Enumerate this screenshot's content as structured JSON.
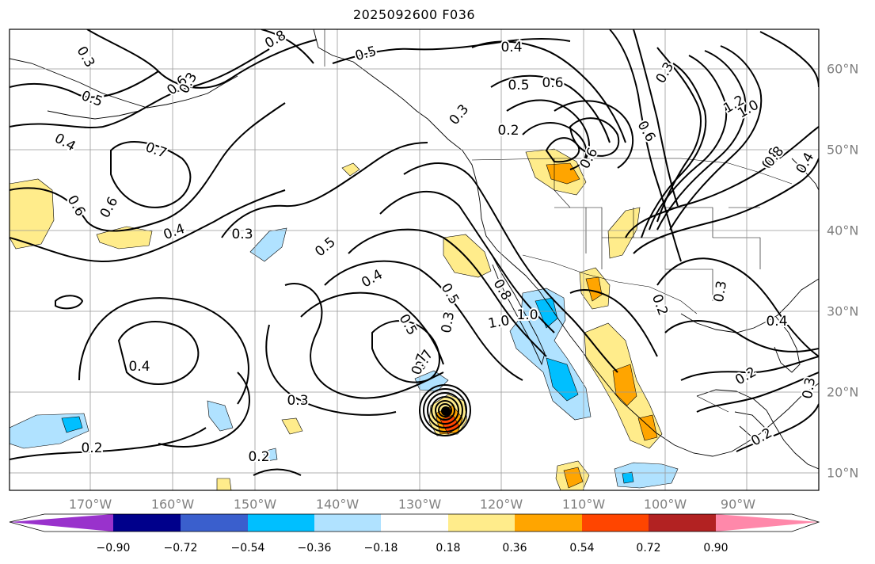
{
  "title": "2025092600 F036",
  "lon_labels": [
    "170°W",
    "160°W",
    "150°W",
    "140°W",
    "130°W",
    "120°W",
    "110°W",
    "100°W",
    "90°W"
  ],
  "lat_labels": [
    "60°N",
    "50°N",
    "40°N",
    "30°N",
    "20°N",
    "10°N"
  ],
  "contour_labels": [
    "0.3",
    "0.5",
    "0.8",
    "0.5",
    "0.4",
    "0.6",
    "0.5",
    "0.6",
    "0.4",
    "0.7",
    "0.6",
    "0.3",
    "0.5",
    "0.6",
    "0.4",
    "0.3",
    "0.5",
    "0.4",
    "0.5",
    "0.3",
    "0.7",
    "0.3",
    "1.0",
    "0.3",
    "0.2",
    "0.8",
    "0.6",
    "1.0",
    "0.6",
    "0.2",
    "0.3",
    "0.4",
    "0.2",
    "0.4",
    "0.3",
    "0.2",
    "0.2",
    "0.8",
    "1.2",
    "1.0",
    "0.8",
    "0.4",
    "0.2",
    "0.3",
    "0.7"
  ],
  "colorbar": {
    "labels": [
      "−0.90",
      "−0.72",
      "−0.54",
      "−0.36",
      "−0.18",
      "0.18",
      "0.36",
      "0.54",
      "0.72",
      "0.90"
    ],
    "colors": [
      "#9932cc",
      "#00008b",
      "#3a5fcd",
      "#00bfff",
      "#b0e2ff",
      "#ffffff",
      "#ffec8b",
      "#ffa500",
      "#ff4500",
      "#b22222",
      "#ff88aa"
    ]
  },
  "fill_colors": {
    "pos1": "#ffec8b",
    "pos2": "#ffa500",
    "pos3": "#ff4500",
    "neg1": "#b0e2ff",
    "neg2": "#00bfff"
  }
}
